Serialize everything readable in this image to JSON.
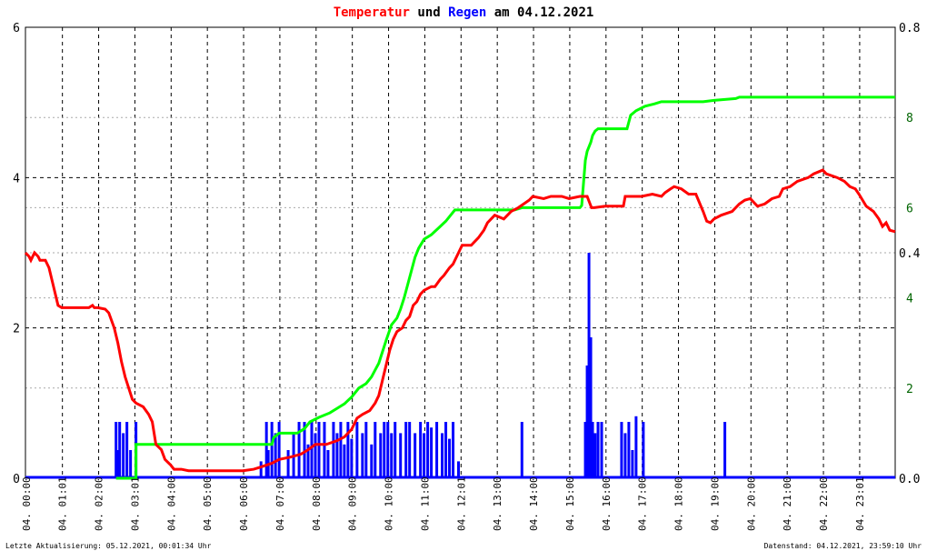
{
  "chart_data": {
    "type": "line",
    "title": {
      "part1": "Temperatur",
      "part2": " und ",
      "part3": "Regen",
      "part4": " am 04.12.2021"
    },
    "colors": {
      "temperature": "#ff0000",
      "rain": "#0000ff",
      "rain_cumulative": "#00ff00",
      "title_neutral": "#000000"
    },
    "xlabel": "",
    "ylabel": "",
    "x_range_hours": [
      0,
      24
    ],
    "y_left": {
      "range": [
        0,
        6
      ],
      "ticks": [
        "0",
        "2",
        "4",
        "6"
      ]
    },
    "y_right_rain_rate": {
      "range": [
        0,
        0.8
      ],
      "ticks": [
        "0.0",
        "0.4",
        "0.8"
      ]
    },
    "y_right_rain_sum": {
      "range": [
        0,
        10
      ],
      "ticks": [
        "2",
        "4",
        "6",
        "8"
      ]
    },
    "x_ticks": [
      "04. 00:00",
      "04. 01:01",
      "04. 02:00",
      "04. 03:01",
      "04. 04:00",
      "04. 05:00",
      "04. 06:00",
      "04. 07:00",
      "04. 08:00",
      "04. 09:00",
      "04. 10:00",
      "04. 11:00",
      "04. 12:01",
      "04. 13:00",
      "04. 14:00",
      "04. 15:00",
      "04. 16:00",
      "04. 17:00",
      "04. 18:00",
      "04. 19:00",
      "04. 20:00",
      "04. 21:00",
      "04. 22:00",
      "04. 23:01"
    ],
    "grid": true,
    "series": [
      {
        "key": "temperature",
        "axis": "left",
        "points": [
          [
            0,
            3.0
          ],
          [
            0.1,
            2.95
          ],
          [
            0.15,
            2.9
          ],
          [
            0.25,
            3.0
          ],
          [
            0.35,
            2.95
          ],
          [
            0.4,
            2.9
          ],
          [
            0.55,
            2.9
          ],
          [
            0.6,
            2.85
          ],
          [
            0.65,
            2.8
          ],
          [
            0.75,
            2.6
          ],
          [
            0.85,
            2.4
          ],
          [
            0.9,
            2.3
          ],
          [
            1.0,
            2.27
          ],
          [
            1.6,
            2.27
          ],
          [
            1.75,
            2.27
          ],
          [
            1.85,
            2.3
          ],
          [
            1.9,
            2.27
          ],
          [
            2.0,
            2.27
          ],
          [
            2.2,
            2.25
          ],
          [
            2.3,
            2.2
          ],
          [
            2.45,
            2.0
          ],
          [
            2.55,
            1.8
          ],
          [
            2.65,
            1.55
          ],
          [
            2.75,
            1.35
          ],
          [
            2.85,
            1.2
          ],
          [
            2.95,
            1.05
          ],
          [
            3.05,
            1.0
          ],
          [
            3.25,
            0.95
          ],
          [
            3.4,
            0.85
          ],
          [
            3.5,
            0.75
          ],
          [
            3.6,
            0.45
          ],
          [
            3.75,
            0.38
          ],
          [
            3.85,
            0.25
          ],
          [
            4.0,
            0.18
          ],
          [
            4.1,
            0.12
          ],
          [
            4.3,
            0.12
          ],
          [
            4.5,
            0.1
          ],
          [
            5.5,
            0.1
          ],
          [
            6.0,
            0.1
          ],
          [
            6.3,
            0.12
          ],
          [
            6.5,
            0.15
          ],
          [
            6.8,
            0.2
          ],
          [
            7.0,
            0.25
          ],
          [
            7.3,
            0.28
          ],
          [
            7.6,
            0.32
          ],
          [
            7.8,
            0.38
          ],
          [
            8.0,
            0.45
          ],
          [
            8.3,
            0.45
          ],
          [
            8.6,
            0.5
          ],
          [
            8.8,
            0.55
          ],
          [
            9.0,
            0.65
          ],
          [
            9.15,
            0.8
          ],
          [
            9.3,
            0.85
          ],
          [
            9.5,
            0.9
          ],
          [
            9.65,
            1.0
          ],
          [
            9.75,
            1.1
          ],
          [
            9.85,
            1.3
          ],
          [
            9.95,
            1.5
          ],
          [
            10.05,
            1.7
          ],
          [
            10.15,
            1.85
          ],
          [
            10.25,
            1.95
          ],
          [
            10.4,
            2.0
          ],
          [
            10.5,
            2.1
          ],
          [
            10.6,
            2.15
          ],
          [
            10.7,
            2.3
          ],
          [
            10.8,
            2.35
          ],
          [
            10.9,
            2.45
          ],
          [
            11.0,
            2.5
          ],
          [
            11.2,
            2.55
          ],
          [
            11.3,
            2.55
          ],
          [
            11.45,
            2.65
          ],
          [
            11.55,
            2.7
          ],
          [
            11.7,
            2.8
          ],
          [
            11.8,
            2.85
          ],
          [
            11.95,
            3.0
          ],
          [
            12.05,
            3.1
          ],
          [
            12.3,
            3.1
          ],
          [
            12.5,
            3.2
          ],
          [
            12.65,
            3.3
          ],
          [
            12.75,
            3.4
          ],
          [
            12.85,
            3.45
          ],
          [
            12.95,
            3.5
          ],
          [
            13.2,
            3.45
          ],
          [
            13.4,
            3.55
          ],
          [
            13.6,
            3.6
          ],
          [
            13.75,
            3.65
          ],
          [
            13.9,
            3.7
          ],
          [
            14.0,
            3.75
          ],
          [
            14.3,
            3.72
          ],
          [
            14.5,
            3.75
          ],
          [
            14.8,
            3.75
          ],
          [
            15.0,
            3.72
          ],
          [
            15.3,
            3.75
          ],
          [
            15.5,
            3.75
          ],
          [
            15.58,
            3.65
          ],
          [
            15.62,
            3.6
          ],
          [
            15.7,
            3.6
          ],
          [
            16.0,
            3.62
          ],
          [
            16.5,
            3.62
          ],
          [
            16.55,
            3.75
          ],
          [
            17.0,
            3.75
          ],
          [
            17.3,
            3.78
          ],
          [
            17.55,
            3.75
          ],
          [
            17.65,
            3.8
          ],
          [
            17.8,
            3.85
          ],
          [
            17.9,
            3.88
          ],
          [
            18.1,
            3.85
          ],
          [
            18.3,
            3.78
          ],
          [
            18.5,
            3.78
          ],
          [
            18.7,
            3.55
          ],
          [
            18.8,
            3.42
          ],
          [
            18.9,
            3.4
          ],
          [
            19.0,
            3.45
          ],
          [
            19.2,
            3.5
          ],
          [
            19.5,
            3.55
          ],
          [
            19.7,
            3.65
          ],
          [
            19.85,
            3.7
          ],
          [
            20.0,
            3.72
          ],
          [
            20.2,
            3.62
          ],
          [
            20.4,
            3.65
          ],
          [
            20.6,
            3.72
          ],
          [
            20.8,
            3.75
          ],
          [
            20.9,
            3.85
          ],
          [
            21.1,
            3.88
          ],
          [
            21.3,
            3.95
          ],
          [
            21.6,
            4.0
          ],
          [
            21.75,
            4.05
          ],
          [
            22.0,
            4.1
          ],
          [
            22.1,
            4.05
          ],
          [
            22.4,
            4.0
          ],
          [
            22.6,
            3.95
          ],
          [
            22.75,
            3.88
          ],
          [
            22.9,
            3.85
          ],
          [
            23.0,
            3.78
          ],
          [
            23.2,
            3.62
          ],
          [
            23.4,
            3.55
          ],
          [
            23.55,
            3.45
          ],
          [
            23.65,
            3.35
          ],
          [
            23.75,
            3.4
          ],
          [
            23.85,
            3.3
          ],
          [
            24.0,
            3.28
          ]
        ]
      },
      {
        "key": "rain_cumulative",
        "axis": "right_sum",
        "points": [
          [
            2.5,
            0
          ],
          [
            3.05,
            0
          ],
          [
            3.05,
            0.75
          ],
          [
            6.8,
            0.75
          ],
          [
            6.85,
            0.9
          ],
          [
            7.0,
            1.0
          ],
          [
            7.5,
            1.0
          ],
          [
            7.7,
            1.1
          ],
          [
            7.85,
            1.25
          ],
          [
            8.1,
            1.35
          ],
          [
            8.4,
            1.45
          ],
          [
            8.6,
            1.55
          ],
          [
            8.8,
            1.65
          ],
          [
            9.0,
            1.8
          ],
          [
            9.2,
            2.0
          ],
          [
            9.4,
            2.1
          ],
          [
            9.55,
            2.25
          ],
          [
            9.65,
            2.4
          ],
          [
            9.75,
            2.55
          ],
          [
            9.85,
            2.8
          ],
          [
            9.95,
            3.05
          ],
          [
            10.1,
            3.4
          ],
          [
            10.25,
            3.55
          ],
          [
            10.35,
            3.75
          ],
          [
            10.45,
            4.0
          ],
          [
            10.55,
            4.3
          ],
          [
            10.65,
            4.6
          ],
          [
            10.75,
            4.9
          ],
          [
            10.85,
            5.1
          ],
          [
            11.0,
            5.3
          ],
          [
            11.2,
            5.4
          ],
          [
            11.4,
            5.55
          ],
          [
            11.6,
            5.7
          ],
          [
            11.75,
            5.85
          ],
          [
            11.85,
            5.95
          ],
          [
            12.2,
            5.95
          ],
          [
            13.5,
            5.95
          ],
          [
            13.7,
            6.0
          ],
          [
            15.3,
            6.0
          ],
          [
            15.35,
            6.05
          ],
          [
            15.45,
            7.05
          ],
          [
            15.5,
            7.25
          ],
          [
            15.6,
            7.45
          ],
          [
            15.65,
            7.6
          ],
          [
            15.72,
            7.7
          ],
          [
            15.8,
            7.75
          ],
          [
            16.6,
            7.75
          ],
          [
            16.7,
            8.05
          ],
          [
            16.85,
            8.15
          ],
          [
            17.1,
            8.25
          ],
          [
            17.35,
            8.3
          ],
          [
            17.55,
            8.35
          ],
          [
            18.5,
            8.35
          ],
          [
            18.6,
            8.35
          ],
          [
            18.7,
            8.35
          ],
          [
            19.0,
            8.38
          ],
          [
            19.6,
            8.42
          ],
          [
            19.7,
            8.45
          ],
          [
            24.0,
            8.45
          ]
        ]
      },
      {
        "key": "rain",
        "axis": "right_rate",
        "points": [
          [
            2.45,
            0.0
          ],
          [
            2.5,
            0.1
          ],
          [
            2.55,
            0.05
          ],
          [
            2.6,
            0.1
          ],
          [
            2.7,
            0.08
          ],
          [
            2.8,
            0.1
          ],
          [
            2.9,
            0.05
          ],
          [
            3.05,
            0.1
          ],
          [
            6.5,
            0.03
          ],
          [
            6.65,
            0.1
          ],
          [
            6.7,
            0.05
          ],
          [
            6.8,
            0.1
          ],
          [
            6.9,
            0.08
          ],
          [
            7.0,
            0.1
          ],
          [
            7.25,
            0.05
          ],
          [
            7.4,
            0.08
          ],
          [
            7.55,
            0.1
          ],
          [
            7.7,
            0.1
          ],
          [
            7.8,
            0.06
          ],
          [
            7.9,
            0.1
          ],
          [
            8.0,
            0.08
          ],
          [
            8.1,
            0.1
          ],
          [
            8.25,
            0.1
          ],
          [
            8.35,
            0.05
          ],
          [
            8.5,
            0.1
          ],
          [
            8.6,
            0.08
          ],
          [
            8.7,
            0.1
          ],
          [
            8.8,
            0.06
          ],
          [
            8.9,
            0.1
          ],
          [
            9.0,
            0.07
          ],
          [
            9.15,
            0.1
          ],
          [
            9.3,
            0.08
          ],
          [
            9.4,
            0.1
          ],
          [
            9.55,
            0.06
          ],
          [
            9.65,
            0.1
          ],
          [
            9.8,
            0.08
          ],
          [
            9.9,
            0.1
          ],
          [
            10.0,
            0.1
          ],
          [
            10.1,
            0.08
          ],
          [
            10.2,
            0.1
          ],
          [
            10.35,
            0.08
          ],
          [
            10.5,
            0.1
          ],
          [
            10.6,
            0.1
          ],
          [
            10.75,
            0.08
          ],
          [
            10.9,
            0.1
          ],
          [
            11.0,
            0.08
          ],
          [
            11.1,
            0.1
          ],
          [
            11.2,
            0.09
          ],
          [
            11.35,
            0.1
          ],
          [
            11.5,
            0.08
          ],
          [
            11.6,
            0.1
          ],
          [
            11.7,
            0.07
          ],
          [
            11.8,
            0.1
          ],
          [
            11.95,
            0.03
          ],
          [
            13.7,
            0.1
          ],
          [
            15.45,
            0.1
          ],
          [
            15.5,
            0.2
          ],
          [
            15.55,
            0.4
          ],
          [
            15.6,
            0.25
          ],
          [
            15.65,
            0.1
          ],
          [
            15.72,
            0.08
          ],
          [
            15.8,
            0.1
          ],
          [
            15.9,
            0.1
          ],
          [
            16.45,
            0.1
          ],
          [
            16.55,
            0.08
          ],
          [
            16.65,
            0.1
          ],
          [
            16.75,
            0.05
          ],
          [
            16.85,
            0.11
          ],
          [
            17.05,
            0.1
          ],
          [
            19.3,
            0.1
          ]
        ]
      }
    ]
  },
  "footer": {
    "left": "Letzte Aktualisierung: 05.12.2021, 00:01:34 Uhr",
    "right": "Datenstand: 04.12.2021, 23:59:10 Uhr"
  }
}
